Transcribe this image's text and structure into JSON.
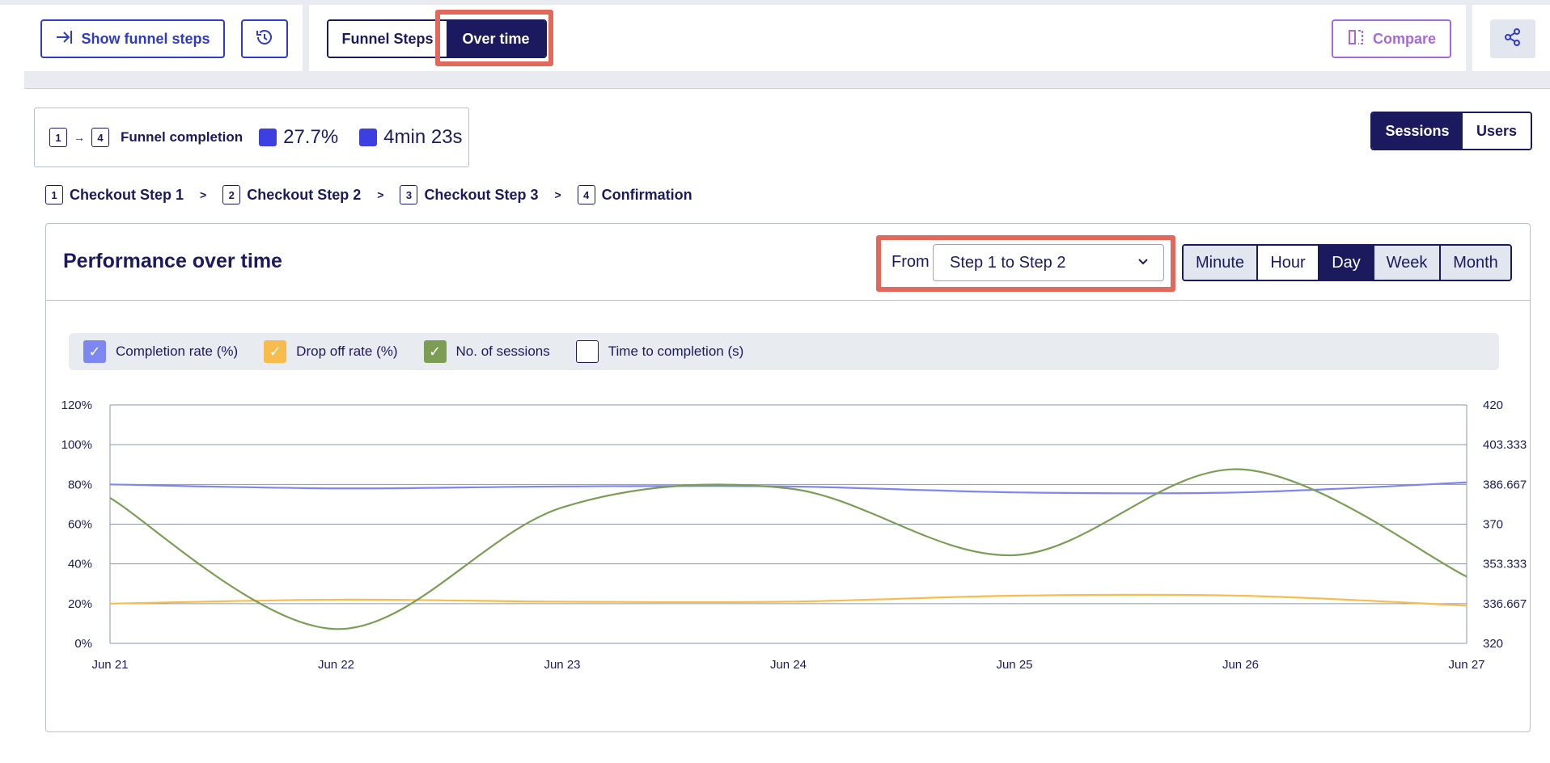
{
  "toolbar": {
    "show_funnel_steps": "Show funnel steps",
    "view_tabs": [
      {
        "label": "Funnel Steps",
        "active": false
      },
      {
        "label": "Over time",
        "active": true
      }
    ],
    "compare": "Compare"
  },
  "summary": {
    "from_step": "1",
    "to_step": "4",
    "label": "Funnel completion",
    "rate": "27.7%",
    "time": "4min 23s"
  },
  "mode_toggle": [
    {
      "label": "Sessions",
      "active": true
    },
    {
      "label": "Users",
      "active": false
    }
  ],
  "steps": [
    {
      "num": "1",
      "name": "Checkout Step 1"
    },
    {
      "num": "2",
      "name": "Checkout Step 2"
    },
    {
      "num": "3",
      "name": "Checkout Step 3"
    },
    {
      "num": "4",
      "name": "Confirmation"
    }
  ],
  "panel": {
    "title": "Performance over time",
    "from_label": "From",
    "selected_range": "Step 1 to Step 2",
    "granularity": [
      {
        "label": "Minute",
        "active": false
      },
      {
        "label": "Hour",
        "active": false
      },
      {
        "label": "Day",
        "active": true
      },
      {
        "label": "Week",
        "active": false
      },
      {
        "label": "Month",
        "active": false
      }
    ]
  },
  "legend": [
    {
      "label": "Completion rate (%)",
      "checked": true,
      "color": "#7e86f0"
    },
    {
      "label": "Drop off rate (%)",
      "checked": true,
      "color": "#f7bc4c"
    },
    {
      "label": "No. of sessions",
      "checked": true,
      "color": "#7b9e54"
    },
    {
      "label": "Time to completion (s)",
      "checked": false,
      "color": "#ffffff"
    }
  ],
  "chart_data": {
    "type": "line",
    "x": [
      "Jun 21",
      "Jun 22",
      "Jun 23",
      "Jun 24",
      "Jun 25",
      "Jun 26",
      "Jun 27"
    ],
    "y_left_ticks": [
      "0%",
      "20%",
      "40%",
      "60%",
      "80%",
      "100%",
      "120%"
    ],
    "y_right_ticks": [
      "320",
      "336.667",
      "353.333",
      "370",
      "386.667",
      "403.333",
      "420"
    ],
    "ylim_left": [
      0,
      120
    ],
    "ylim_right": [
      320,
      420
    ],
    "grid": true,
    "series": [
      {
        "name": "Completion rate (%)",
        "axis": "left",
        "color": "#7e86f0",
        "values": [
          80,
          78,
          79,
          79,
          76,
          76,
          81
        ]
      },
      {
        "name": "Drop off rate (%)",
        "axis": "left",
        "color": "#f7bc4c",
        "values": [
          20,
          22,
          21,
          21,
          24,
          24,
          19
        ]
      },
      {
        "name": "No. of sessions",
        "axis": "right",
        "color": "#7b9e54",
        "values": [
          381,
          326,
          377,
          385,
          357,
          393,
          348
        ]
      }
    ]
  }
}
